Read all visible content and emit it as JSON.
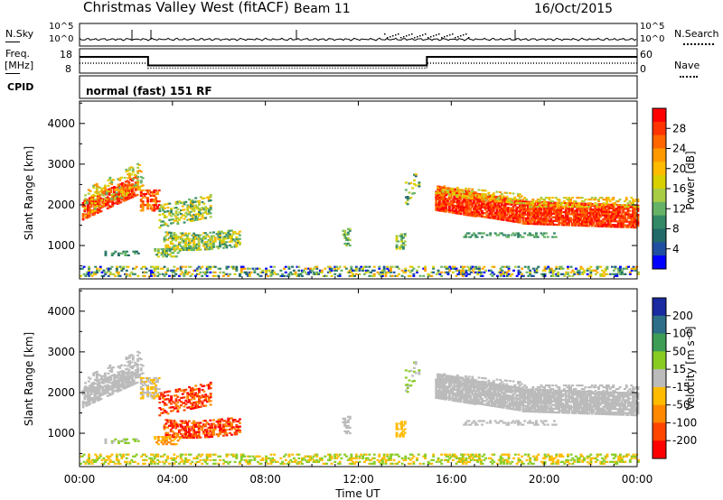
{
  "header": {
    "station": "Christmas Valley West (fitACF)",
    "beam": "Beam 11",
    "date": "16/Oct/2015"
  },
  "top_panels": {
    "nsky_label": "N.Sky",
    "nsearch_label": "N.Search",
    "nsky_ticks": [
      "10^5",
      "10^0"
    ],
    "nsearch_ticks": [
      "10^5",
      "10^0"
    ],
    "freq_label_1": "Freq.",
    "freq_label_2": "[MHz]",
    "freq_ticks": [
      "18",
      "8"
    ],
    "nave_label": "Nave",
    "nave_ticks": [
      "60",
      "0"
    ],
    "cpid_label": "CPID",
    "cpid_value": "normal (fast) 151 RF"
  },
  "chart_data": [
    {
      "type": "heatmap",
      "name": "power",
      "ylabel": "Slant Range [km]",
      "yticks": [
        1000,
        2000,
        3000,
        4000
      ],
      "ylim": [
        180,
        4550
      ],
      "xlim": [
        0,
        24
      ],
      "colorbar_label": "Power [dB]",
      "colorbar_ticks": [
        "28",
        "24",
        "20",
        "16",
        "12",
        "8",
        "4"
      ],
      "colorbar_colors": [
        "#ff0000",
        "#ff3300",
        "#ff6600",
        "#ff9900",
        "#ffbb00",
        "#d8d000",
        "#a8cc44",
        "#66b266",
        "#338866",
        "#226a6a",
        "#1f4fa0",
        "#0000ff"
      ],
      "colorbar_range": [
        0,
        30
      ]
    },
    {
      "type": "heatmap",
      "name": "velocity",
      "ylabel": "Slant Range [km]",
      "yticks": [
        1000,
        2000,
        3000,
        4000
      ],
      "ylim": [
        180,
        4550
      ],
      "xlim": [
        0,
        24
      ],
      "colorbar_label": "Velocity [m s⁻¹]",
      "colorbar_ticks": [
        "200",
        "100",
        "50",
        "15",
        "-15",
        "-50",
        "-100",
        "-200"
      ],
      "colorbar_colors": [
        "#1a2aa0",
        "#2e6e88",
        "#3d9d55",
        "#88cc22",
        "#bbbbbb",
        "#ffbb00",
        "#ff8800",
        "#ff4400",
        "#ff0000"
      ]
    }
  ],
  "xaxis": {
    "ticks": [
      "00:00",
      "04:00",
      "08:00",
      "12:00",
      "16:00",
      "20:00",
      "00:00"
    ],
    "label": "Time UT"
  }
}
